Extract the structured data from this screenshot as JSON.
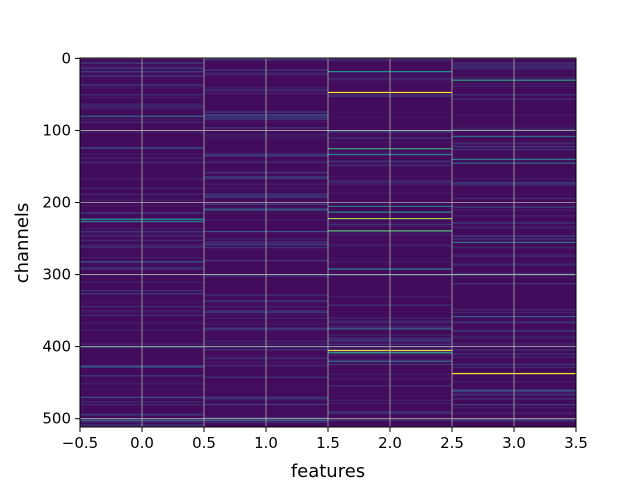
{
  "chart_data": {
    "type": "heatmap",
    "title": "",
    "xlabel": "features",
    "ylabel": "channels",
    "xlim": [
      -0.5,
      3.5
    ],
    "ylim": [
      511.5,
      -0.5
    ],
    "x_ticks": [
      "−0.5",
      "0.0",
      "0.5",
      "1.0",
      "1.5",
      "2.0",
      "2.5",
      "3.0",
      "3.5"
    ],
    "y_ticks": [
      "0",
      "100",
      "200",
      "300",
      "400",
      "500"
    ],
    "n_channels": 512,
    "n_features": 4,
    "grid": true,
    "colormap": "viridis",
    "background_value": 0.03,
    "colors": {
      "low": "#440154",
      "mid": "#21918c",
      "high": "#fde725",
      "grid": "#b0b0b0"
    },
    "highlights": [
      {
        "feature": 0,
        "channels": [
          80,
          124,
          223,
          226,
          282,
          400,
          428,
          470,
          502
        ],
        "values": [
          0.35,
          0.3,
          0.5,
          0.42,
          0.3,
          0.4,
          0.28,
          0.25,
          0.3
        ]
      },
      {
        "feature": 1,
        "channels": [
          78,
          135,
          210,
          240,
          300,
          400,
          480,
          502
        ],
        "values": [
          0.25,
          0.2,
          0.35,
          0.25,
          0.25,
          0.3,
          0.2,
          0.3
        ]
      },
      {
        "feature": 2,
        "channels": [
          18,
          47,
          100,
          125,
          133,
          205,
          213,
          222,
          239,
          292,
          300,
          375,
          405,
          408,
          420
        ],
        "values": [
          0.5,
          1.0,
          0.4,
          0.6,
          0.45,
          0.4,
          0.5,
          0.85,
          0.7,
          0.45,
          0.4,
          0.35,
          0.95,
          0.55,
          0.35
        ]
      },
      {
        "feature": 3,
        "channels": [
          30,
          108,
          140,
          145,
          255,
          300,
          358,
          437,
          460,
          500
        ],
        "values": [
          0.55,
          0.35,
          0.4,
          0.35,
          0.4,
          0.35,
          0.3,
          1.0,
          0.3,
          0.25
        ]
      }
    ]
  }
}
